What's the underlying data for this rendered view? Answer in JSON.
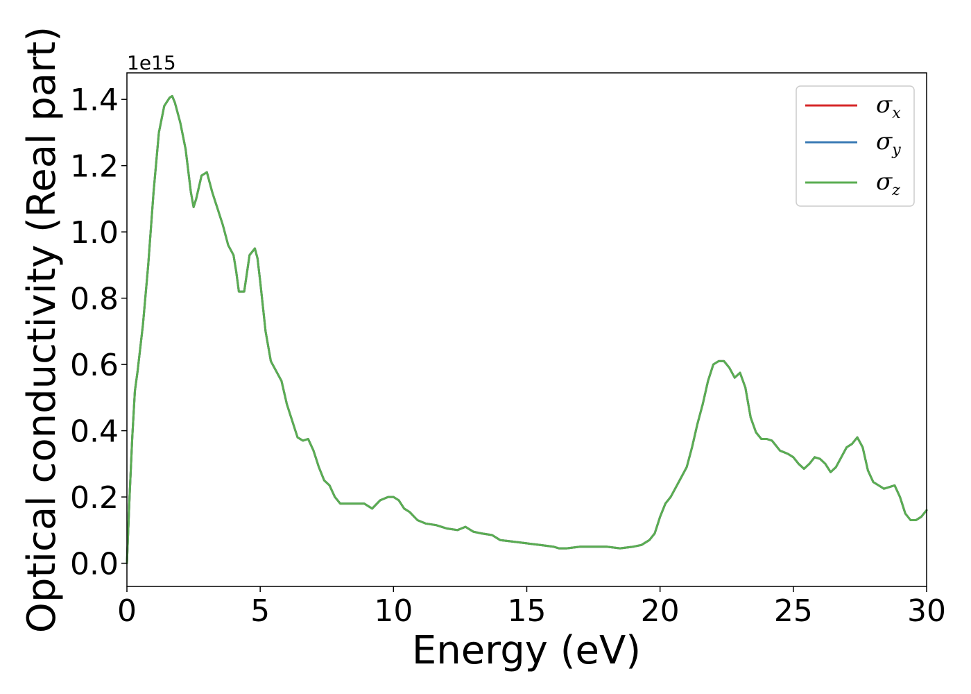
{
  "chart_data": {
    "type": "line",
    "xlabel": "Energy (eV)",
    "ylabel": "Optical conductivity (Real part)",
    "y_offset_label": "1e15",
    "xlim": [
      0,
      30
    ],
    "ylim": [
      -0.07,
      1.48
    ],
    "x_ticks": [
      0,
      5,
      10,
      15,
      20,
      25,
      30
    ],
    "x_tick_labels": [
      "0",
      "5",
      "10",
      "15",
      "20",
      "25",
      "30"
    ],
    "y_ticks": [
      0.0,
      0.2,
      0.4,
      0.6,
      0.8,
      1.0,
      1.2,
      1.4
    ],
    "y_tick_labels": [
      "0.0",
      "0.2",
      "0.4",
      "0.6",
      "0.8",
      "1.0",
      "1.2",
      "1.4"
    ],
    "grid": false,
    "legend_position": "top-right",
    "x": [
      0.0,
      0.1,
      0.2,
      0.3,
      0.4,
      0.6,
      0.8,
      1.0,
      1.2,
      1.4,
      1.6,
      1.7,
      1.8,
      2.0,
      2.2,
      2.4,
      2.5,
      2.6,
      2.8,
      3.0,
      3.2,
      3.4,
      3.6,
      3.8,
      4.0,
      4.1,
      4.2,
      4.4,
      4.6,
      4.8,
      4.9,
      5.0,
      5.2,
      5.4,
      5.6,
      5.8,
      6.0,
      6.2,
      6.4,
      6.6,
      6.8,
      7.0,
      7.2,
      7.4,
      7.6,
      7.8,
      8.0,
      8.2,
      8.5,
      8.9,
      9.2,
      9.5,
      9.8,
      10.0,
      10.2,
      10.4,
      10.6,
      10.9,
      11.2,
      11.6,
      12.0,
      12.4,
      12.7,
      13.0,
      13.3,
      13.7,
      14.0,
      14.5,
      15.0,
      15.5,
      16.0,
      16.2,
      16.5,
      17.0,
      17.5,
      18.0,
      18.5,
      19.0,
      19.3,
      19.6,
      19.8,
      20.0,
      20.2,
      20.4,
      20.6,
      20.8,
      21.0,
      21.2,
      21.4,
      21.6,
      21.8,
      22.0,
      22.2,
      22.4,
      22.6,
      22.8,
      23.0,
      23.2,
      23.4,
      23.6,
      23.8,
      24.0,
      24.2,
      24.5,
      24.8,
      25.0,
      25.2,
      25.4,
      25.6,
      25.8,
      26.0,
      26.2,
      26.4,
      26.6,
      26.8,
      27.0,
      27.2,
      27.4,
      27.6,
      27.8,
      28.0,
      28.2,
      28.4,
      28.6,
      28.8,
      29.0,
      29.2,
      29.4,
      29.6,
      29.8,
      30.0
    ],
    "series": [
      {
        "name": "σ_x",
        "color": "#d62728",
        "values": [
          0.0,
          0.2,
          0.38,
          0.52,
          0.58,
          0.72,
          0.9,
          1.12,
          1.3,
          1.38,
          1.405,
          1.41,
          1.39,
          1.33,
          1.25,
          1.12,
          1.075,
          1.1,
          1.17,
          1.18,
          1.12,
          1.07,
          1.02,
          0.96,
          0.93,
          0.88,
          0.82,
          0.82,
          0.93,
          0.95,
          0.92,
          0.85,
          0.7,
          0.61,
          0.58,
          0.55,
          0.48,
          0.43,
          0.38,
          0.37,
          0.375,
          0.34,
          0.29,
          0.25,
          0.235,
          0.2,
          0.18,
          0.18,
          0.18,
          0.18,
          0.165,
          0.19,
          0.2,
          0.2,
          0.19,
          0.165,
          0.155,
          0.13,
          0.12,
          0.115,
          0.105,
          0.1,
          0.11,
          0.095,
          0.09,
          0.085,
          0.07,
          0.065,
          0.06,
          0.055,
          0.05,
          0.045,
          0.045,
          0.05,
          0.05,
          0.05,
          0.045,
          0.05,
          0.055,
          0.07,
          0.09,
          0.14,
          0.18,
          0.2,
          0.23,
          0.26,
          0.29,
          0.35,
          0.42,
          0.48,
          0.55,
          0.6,
          0.61,
          0.61,
          0.59,
          0.56,
          0.575,
          0.53,
          0.44,
          0.395,
          0.375,
          0.375,
          0.37,
          0.34,
          0.33,
          0.32,
          0.3,
          0.285,
          0.3,
          0.32,
          0.315,
          0.3,
          0.275,
          0.29,
          0.32,
          0.35,
          0.36,
          0.38,
          0.35,
          0.28,
          0.245,
          0.235,
          0.225,
          0.23,
          0.235,
          0.2,
          0.15,
          0.13,
          0.13,
          0.14,
          0.16
        ]
      },
      {
        "name": "σ_y",
        "color": "#3b7bb5",
        "values": [
          0.0,
          0.2,
          0.38,
          0.52,
          0.58,
          0.72,
          0.9,
          1.12,
          1.3,
          1.38,
          1.405,
          1.41,
          1.39,
          1.33,
          1.25,
          1.12,
          1.075,
          1.1,
          1.17,
          1.18,
          1.12,
          1.07,
          1.02,
          0.96,
          0.93,
          0.88,
          0.82,
          0.82,
          0.93,
          0.95,
          0.92,
          0.85,
          0.7,
          0.61,
          0.58,
          0.55,
          0.48,
          0.43,
          0.38,
          0.37,
          0.375,
          0.34,
          0.29,
          0.25,
          0.235,
          0.2,
          0.18,
          0.18,
          0.18,
          0.18,
          0.165,
          0.19,
          0.2,
          0.2,
          0.19,
          0.165,
          0.155,
          0.13,
          0.12,
          0.115,
          0.105,
          0.1,
          0.11,
          0.095,
          0.09,
          0.085,
          0.07,
          0.065,
          0.06,
          0.055,
          0.05,
          0.045,
          0.045,
          0.05,
          0.05,
          0.05,
          0.045,
          0.05,
          0.055,
          0.07,
          0.09,
          0.14,
          0.18,
          0.2,
          0.23,
          0.26,
          0.29,
          0.35,
          0.42,
          0.48,
          0.55,
          0.6,
          0.61,
          0.61,
          0.59,
          0.56,
          0.575,
          0.53,
          0.44,
          0.395,
          0.375,
          0.375,
          0.37,
          0.34,
          0.33,
          0.32,
          0.3,
          0.285,
          0.3,
          0.32,
          0.315,
          0.3,
          0.275,
          0.29,
          0.32,
          0.35,
          0.36,
          0.38,
          0.35,
          0.28,
          0.245,
          0.235,
          0.225,
          0.23,
          0.235,
          0.2,
          0.15,
          0.13,
          0.13,
          0.14,
          0.16
        ]
      },
      {
        "name": "σ_z",
        "color": "#5aad52",
        "values": [
          0.0,
          0.2,
          0.38,
          0.52,
          0.58,
          0.72,
          0.9,
          1.12,
          1.3,
          1.38,
          1.405,
          1.41,
          1.39,
          1.33,
          1.25,
          1.12,
          1.075,
          1.1,
          1.17,
          1.18,
          1.12,
          1.07,
          1.02,
          0.96,
          0.93,
          0.88,
          0.82,
          0.82,
          0.93,
          0.95,
          0.92,
          0.85,
          0.7,
          0.61,
          0.58,
          0.55,
          0.48,
          0.43,
          0.38,
          0.37,
          0.375,
          0.34,
          0.29,
          0.25,
          0.235,
          0.2,
          0.18,
          0.18,
          0.18,
          0.18,
          0.165,
          0.19,
          0.2,
          0.2,
          0.19,
          0.165,
          0.155,
          0.13,
          0.12,
          0.115,
          0.105,
          0.1,
          0.11,
          0.095,
          0.09,
          0.085,
          0.07,
          0.065,
          0.06,
          0.055,
          0.05,
          0.045,
          0.045,
          0.05,
          0.05,
          0.05,
          0.045,
          0.05,
          0.055,
          0.07,
          0.09,
          0.14,
          0.18,
          0.2,
          0.23,
          0.26,
          0.29,
          0.35,
          0.42,
          0.48,
          0.55,
          0.6,
          0.61,
          0.61,
          0.59,
          0.56,
          0.575,
          0.53,
          0.44,
          0.395,
          0.375,
          0.375,
          0.37,
          0.34,
          0.33,
          0.32,
          0.3,
          0.285,
          0.3,
          0.32,
          0.315,
          0.3,
          0.275,
          0.29,
          0.32,
          0.35,
          0.36,
          0.38,
          0.35,
          0.28,
          0.245,
          0.235,
          0.225,
          0.23,
          0.235,
          0.2,
          0.15,
          0.13,
          0.13,
          0.14,
          0.16
        ]
      }
    ],
    "legend_entries": [
      {
        "symbol": "σ",
        "subscript": "x"
      },
      {
        "symbol": "σ",
        "subscript": "y"
      },
      {
        "symbol": "σ",
        "subscript": "z"
      }
    ]
  }
}
